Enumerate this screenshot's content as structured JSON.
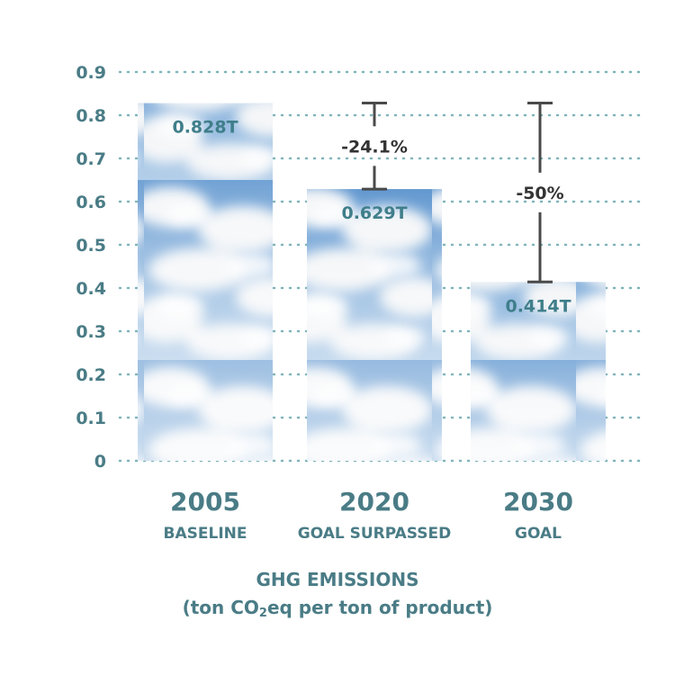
{
  "chart_data": {
    "type": "bar",
    "categories": [
      "2005",
      "2020",
      "2030"
    ],
    "category_sublabels": [
      "BASELINE",
      "GOAL SURPASSED",
      "GOAL"
    ],
    "values": [
      0.828,
      0.629,
      0.414
    ],
    "value_labels": [
      "0.828T",
      "0.629T",
      "0.414T"
    ],
    "ylim": [
      0,
      0.9
    ],
    "yticks": [
      "0",
      "0.1",
      "0.2",
      "0.3",
      "0.4",
      "0.5",
      "0.6",
      "0.7",
      "0.8",
      "0.9"
    ],
    "grid": true,
    "bar_fill": "sky-clouds",
    "reductions": [
      {
        "from": 0.828,
        "to": 0.629,
        "label": "-24.1%",
        "category": "2020"
      },
      {
        "from": 0.828,
        "to": 0.414,
        "label": "-50%",
        "category": "2030"
      }
    ],
    "xlabel": {
      "line1": "GHG EMISSIONS",
      "line2_pre": "(ton CO",
      "line2_sub": "2",
      "line2_post": "eq per ton of product)"
    },
    "colors": {
      "text": "#4a7c86",
      "value_label": "#3f7e8a",
      "grid": "#7fb5bb",
      "error_bar": "#4a4a4a",
      "sky": "#6fa3d6"
    }
  }
}
